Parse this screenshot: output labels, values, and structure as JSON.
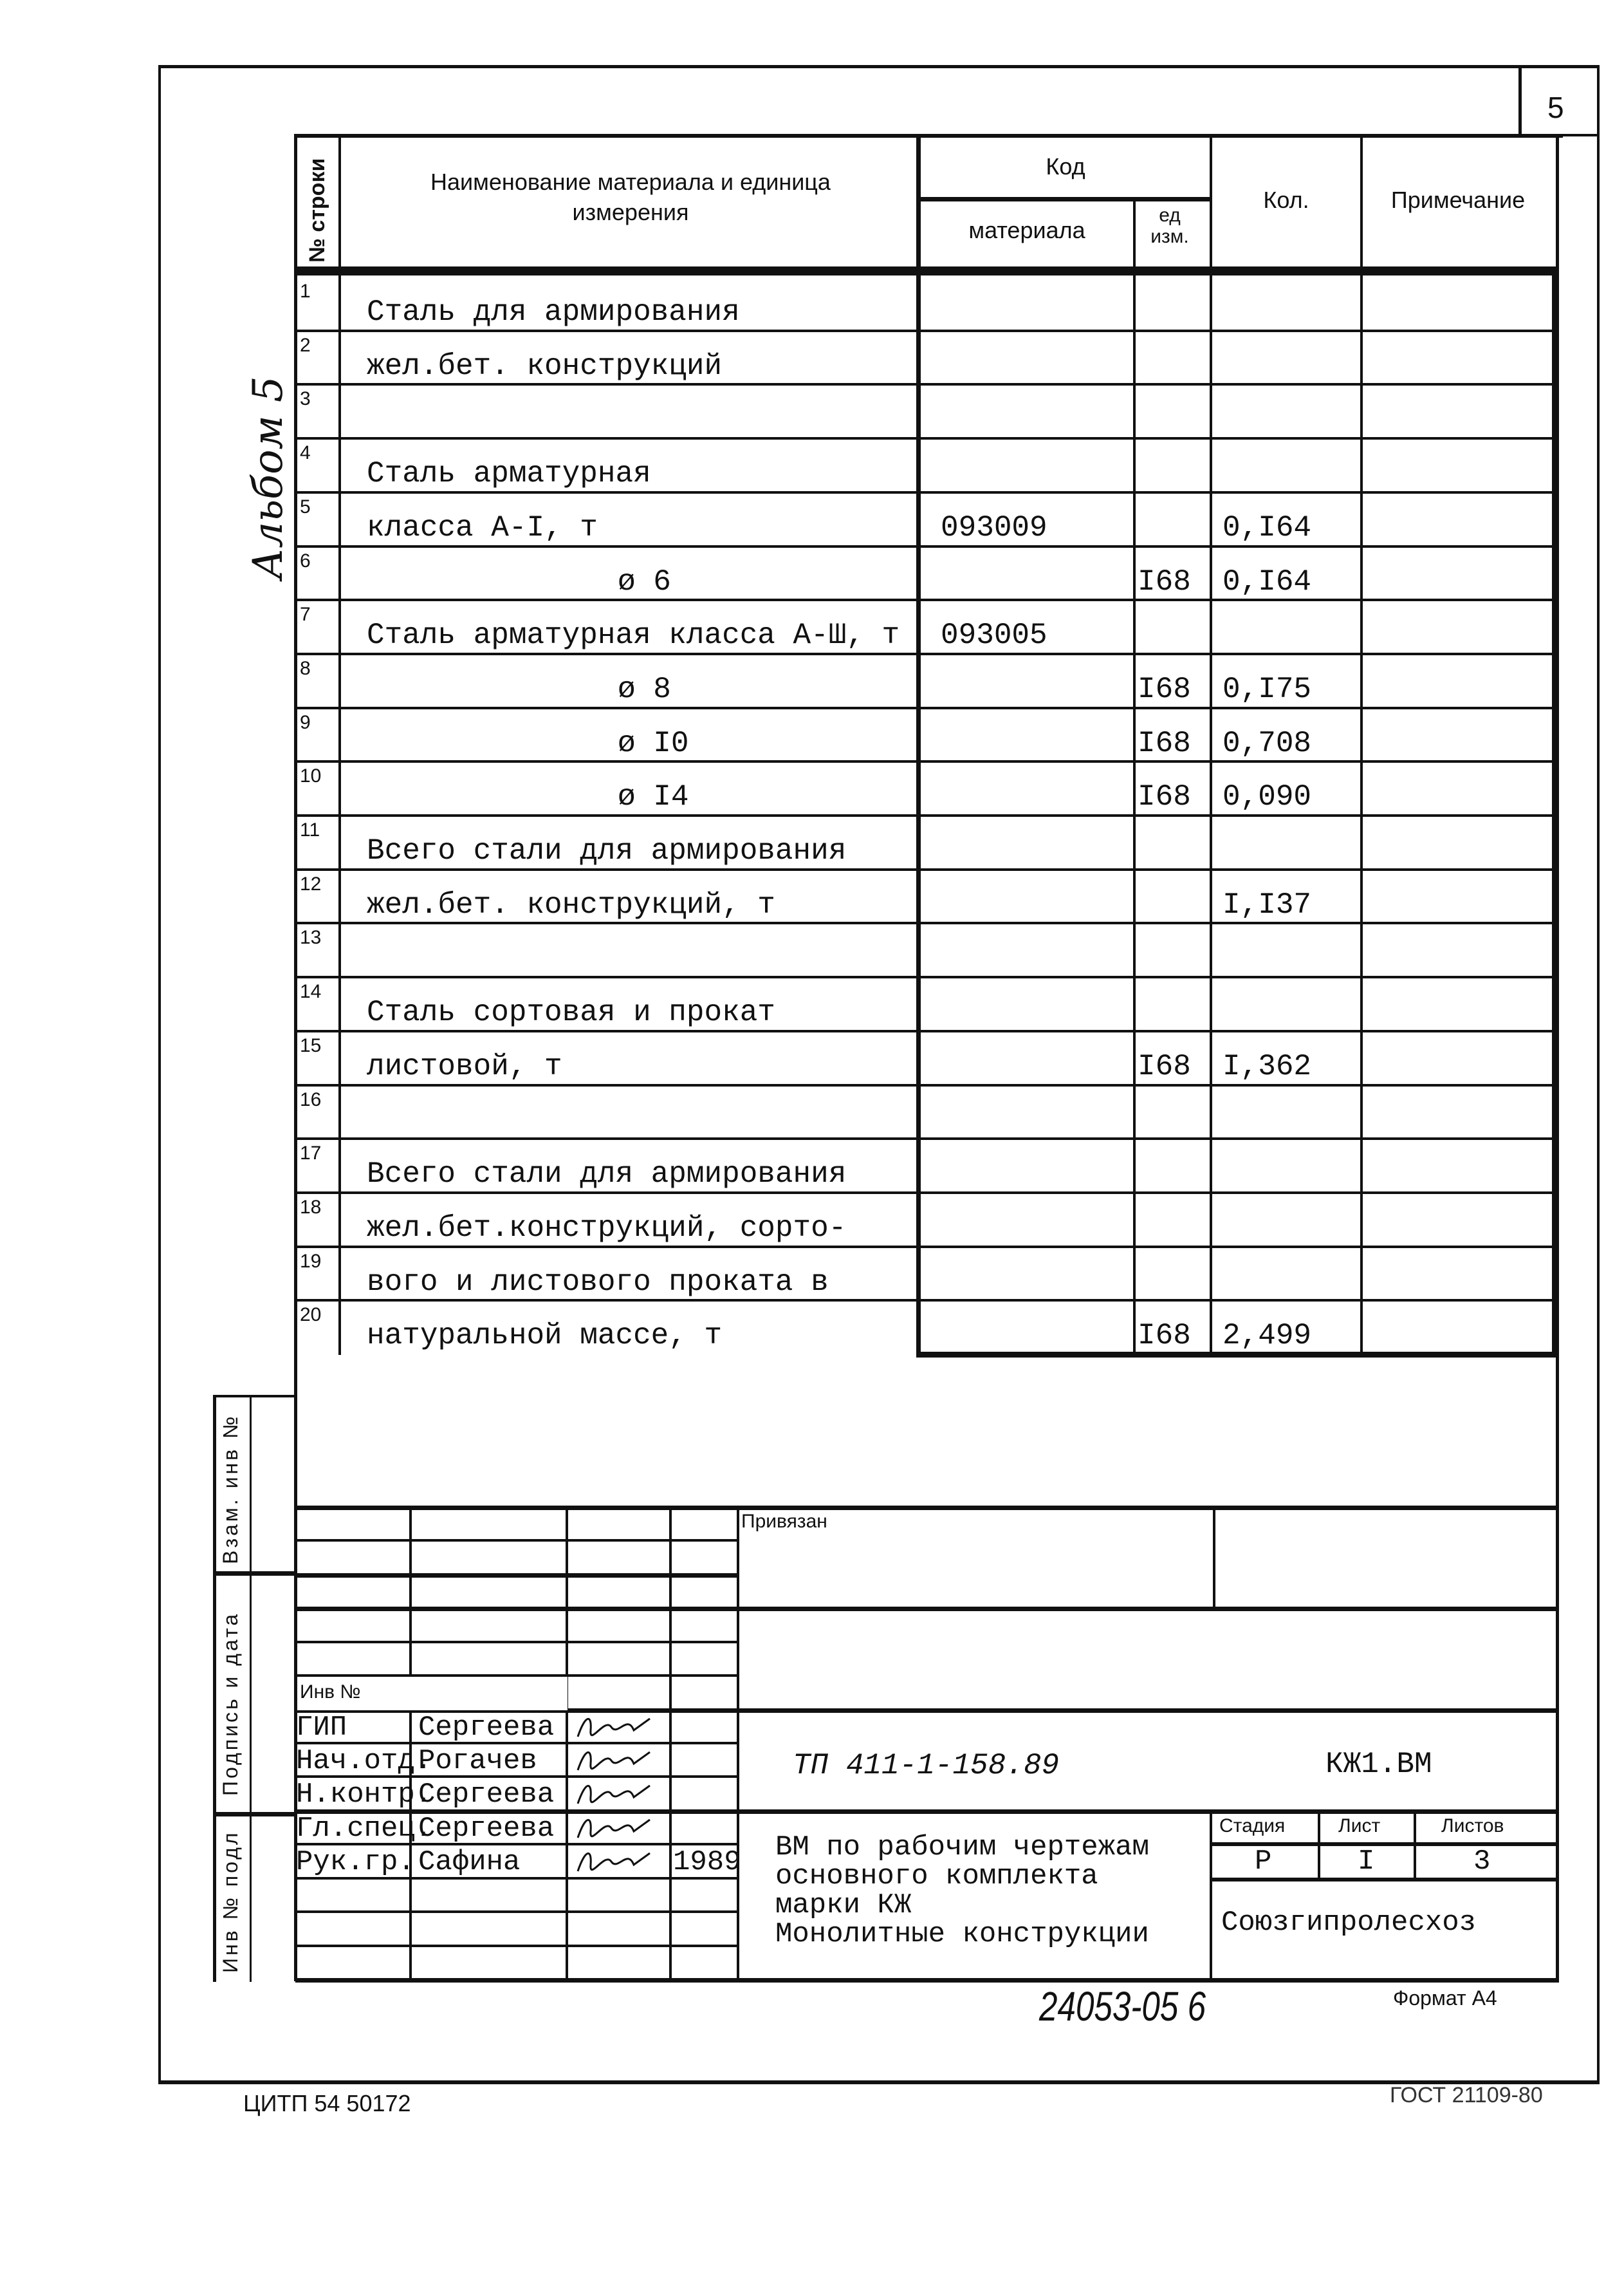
{
  "page_number": "5",
  "album_label": "Альбом 5",
  "table": {
    "headers": {
      "row_no": "№ строки",
      "name": "Наименование материала и единица измерения",
      "code": "Код",
      "code_material": "материала",
      "code_unit": "ед изм.",
      "qty": "Кол.",
      "note": "Примечание"
    },
    "rows": [
      {
        "n": "1",
        "name": "Сталь для армирования",
        "code": "",
        "unit": "",
        "qty": ""
      },
      {
        "n": "2",
        "name": "жел.бет. конструкций",
        "code": "",
        "unit": "",
        "qty": ""
      },
      {
        "n": "3",
        "name": "",
        "code": "",
        "unit": "",
        "qty": ""
      },
      {
        "n": "4",
        "name": "Сталь арматурная",
        "code": "",
        "unit": "",
        "qty": ""
      },
      {
        "n": "5",
        "name": "класса А-I, т",
        "code": "093009",
        "unit": "",
        "qty": "0,I64"
      },
      {
        "n": "6",
        "name": "ø 6",
        "code": "",
        "unit": "I68",
        "qty": "0,I64"
      },
      {
        "n": "7",
        "name": "Сталь арматурная класса А-Ш, т",
        "code": "093005",
        "unit": "",
        "qty": ""
      },
      {
        "n": "8",
        "name": "ø 8",
        "code": "",
        "unit": "I68",
        "qty": "0,I75"
      },
      {
        "n": "9",
        "name": "ø I0",
        "code": "",
        "unit": "I68",
        "qty": "0,708"
      },
      {
        "n": "10",
        "name": "ø I4",
        "code": "",
        "unit": "I68",
        "qty": "0,090"
      },
      {
        "n": "11",
        "name": "Всего стали для армирования",
        "code": "",
        "unit": "",
        "qty": ""
      },
      {
        "n": "12",
        "name": "жел.бет. конструкций, т",
        "code": "",
        "unit": "",
        "qty": "I,I37"
      },
      {
        "n": "13",
        "name": "",
        "code": "",
        "unit": "",
        "qty": ""
      },
      {
        "n": "14",
        "name": "Сталь сортовая и прокат",
        "code": "",
        "unit": "",
        "qty": ""
      },
      {
        "n": "15",
        "name": "листовой, т",
        "code": "",
        "unit": "I68",
        "qty": "I,362"
      },
      {
        "n": "16",
        "name": "",
        "code": "",
        "unit": "",
        "qty": ""
      },
      {
        "n": "17",
        "name": "Всего стали для армирования",
        "code": "",
        "unit": "",
        "qty": ""
      },
      {
        "n": "18",
        "name": "жел.бет.конструкций, сорто-",
        "code": "",
        "unit": "",
        "qty": ""
      },
      {
        "n": "19",
        "name": "вого и листового проката в",
        "code": "",
        "unit": "",
        "qty": ""
      },
      {
        "n": "20",
        "name": "натуральной массе, т",
        "code": "",
        "unit": "I68",
        "qty": "2,499"
      }
    ]
  },
  "side_labels": {
    "replace_inv": "Взам. инв №",
    "sign_date": "Подпись и дата",
    "inv_orig": "Инв № подл"
  },
  "stamp": {
    "linked": "Привязан",
    "inv_no": "Инв №",
    "signers": [
      {
        "role": "ГИП",
        "name": "Сергеева",
        "date": ""
      },
      {
        "role": "Нач.отд.",
        "name": "Рогачев",
        "date": ""
      },
      {
        "role": "Н.контр.",
        "name": "Сергеева",
        "date": ""
      },
      {
        "role": "Гл.спец.",
        "name": "Сергеева",
        "date": ""
      },
      {
        "role": "Рук.гр.",
        "name": "Сафина",
        "date": "1989"
      }
    ],
    "project_code": "ТП 411-1-158.89",
    "doc_code": "КЖ1.ВМ",
    "title_lines": [
      "ВМ по рабочим чертежам",
      "основного комплекта",
      "марки КЖ",
      "Монолитные конструкции"
    ],
    "stage_label": "Стадия",
    "sheet_label": "Лист",
    "sheets_label": "Листов",
    "stage": "Р",
    "sheet": "I",
    "sheets": "3",
    "organization": "Союзгипролесхоз"
  },
  "footer": {
    "archive_no": "24053-05 6",
    "format": "Формат А4",
    "printer": "ЦИТП 54 50172",
    "standard": "ГОСТ 21109-80"
  }
}
